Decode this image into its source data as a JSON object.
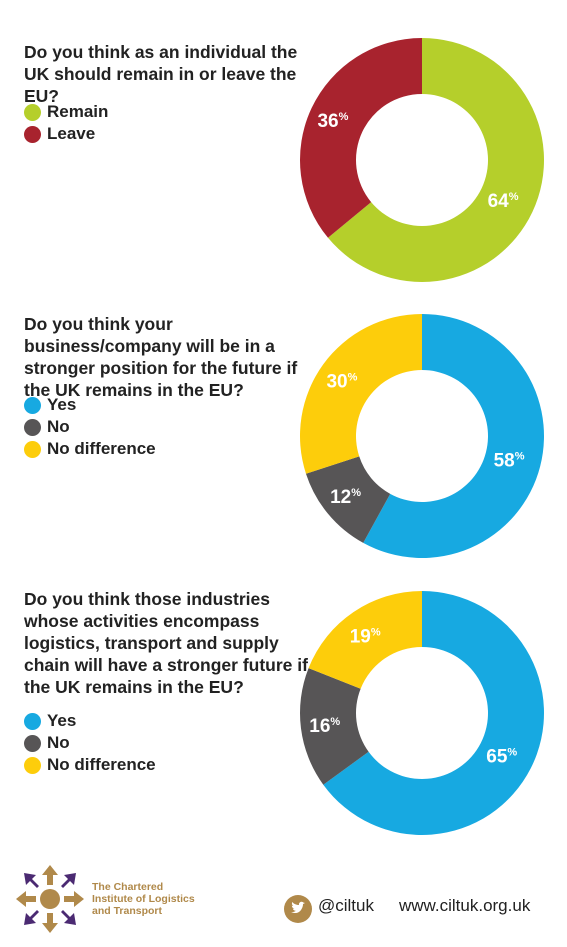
{
  "chart_data": [
    {
      "type": "pie",
      "question": "Do you think as an individual the UK should remain in or leave the EU?",
      "question_lines": [
        "Do you think as an individual the UK",
        "should remain in or leave the EU?"
      ],
      "slices": [
        {
          "label": "Remain",
          "value": 64,
          "color": "#b5cf2b"
        },
        {
          "label": "Leave",
          "value": 36,
          "color": "#a8232e"
        }
      ]
    },
    {
      "type": "pie",
      "question": "Do you think your business/company will be in a stronger position for the future if the UK remains in the EU?",
      "question_lines": [
        "Do you think your business/company",
        "will be in a stronger position for the",
        "future if the UK remains in the EU?"
      ],
      "slices": [
        {
          "label": "Yes",
          "value": 58,
          "color": "#17a9e1"
        },
        {
          "label": "No",
          "value": 12,
          "color": "#575556"
        },
        {
          "label": "No difference",
          "value": 30,
          "color": "#fdcd0b"
        }
      ]
    },
    {
      "type": "pie",
      "question": "Do you think those industries whose activities encompass logistics, transport and supply chain will have a stronger future if the UK remains in the EU?",
      "question_lines": [
        "Do you think those industries whose",
        "activities encompass logistics,",
        "transport and supply chain will",
        "have a stronger future if the UK",
        "remains in the EU?"
      ],
      "slices": [
        {
          "label": "Yes",
          "value": 65,
          "color": "#17a9e1"
        },
        {
          "label": "No",
          "value": 16,
          "color": "#575556"
        },
        {
          "label": "No difference",
          "value": 19,
          "color": "#fdcd0b"
        }
      ]
    }
  ],
  "percent_symbol": "%",
  "footer": {
    "org_name": "The Chartered\nInstitute of Logistics\nand Transport",
    "twitter_handle": "@ciltuk",
    "website": "www.ciltuk.org.uk",
    "brand_color": "#b0894a",
    "logo_icon": "cilt-compass-logo-icon",
    "social_icon": "twitter-bird-icon"
  }
}
